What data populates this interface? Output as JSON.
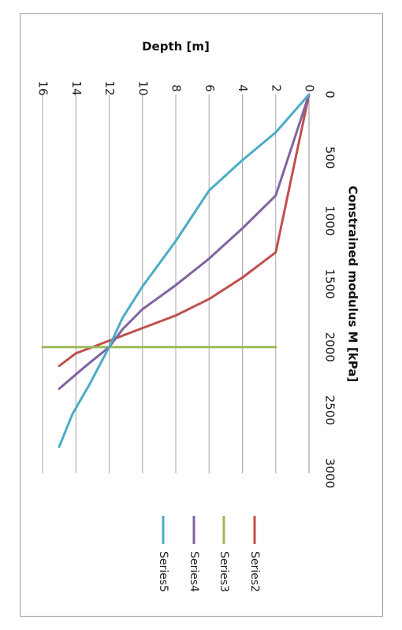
{
  "chart_data": {
    "type": "line",
    "orientation": "rotated-90-clockwise",
    "xlabel": "Constrained modulus M [kPa]",
    "ylabel": "Depth [m]",
    "xlim": [
      0,
      3000
    ],
    "ylim": [
      16,
      0
    ],
    "x_ticks": [
      "0",
      "500",
      "1000",
      "1500",
      "2000",
      "2500",
      "3000"
    ],
    "y_ticks": [
      "16",
      "14",
      "12",
      "10",
      "8",
      "6",
      "4",
      "2",
      "0"
    ],
    "grid": "horizontal lines at depth ticks",
    "legend_position": "right",
    "series": [
      {
        "name": "Series2",
        "color": "#c0504d",
        "points": [
          [
            0,
            0
          ],
          [
            1250,
            2
          ],
          [
            1450,
            4
          ],
          [
            1620,
            6
          ],
          [
            1750,
            8
          ],
          [
            1850,
            10
          ],
          [
            1950,
            12
          ],
          [
            2050,
            14
          ],
          [
            2150,
            15
          ]
        ]
      },
      {
        "name": "Series3",
        "color": "#9bbb59",
        "points": [
          [
            2000,
            2
          ],
          [
            2000,
            16
          ]
        ]
      },
      {
        "name": "Series4",
        "color": "#8064a2",
        "points": [
          [
            0,
            0
          ],
          [
            800,
            2
          ],
          [
            1060,
            4
          ],
          [
            1300,
            6
          ],
          [
            1510,
            8
          ],
          [
            1700,
            10
          ],
          [
            1860,
            11.2
          ],
          [
            2000,
            12
          ],
          [
            2150,
            13.4
          ],
          [
            2330,
            15
          ]
        ]
      },
      {
        "name": "Series5",
        "color": "#4bacc6",
        "points": [
          [
            0,
            0
          ],
          [
            300,
            2
          ],
          [
            520,
            4
          ],
          [
            760,
            6
          ],
          [
            1160,
            8
          ],
          [
            1520,
            10
          ],
          [
            1770,
            11.2
          ],
          [
            2000,
            12
          ],
          [
            2300,
            13.2
          ],
          [
            2530,
            14.2
          ],
          [
            2790,
            15
          ]
        ]
      }
    ]
  }
}
